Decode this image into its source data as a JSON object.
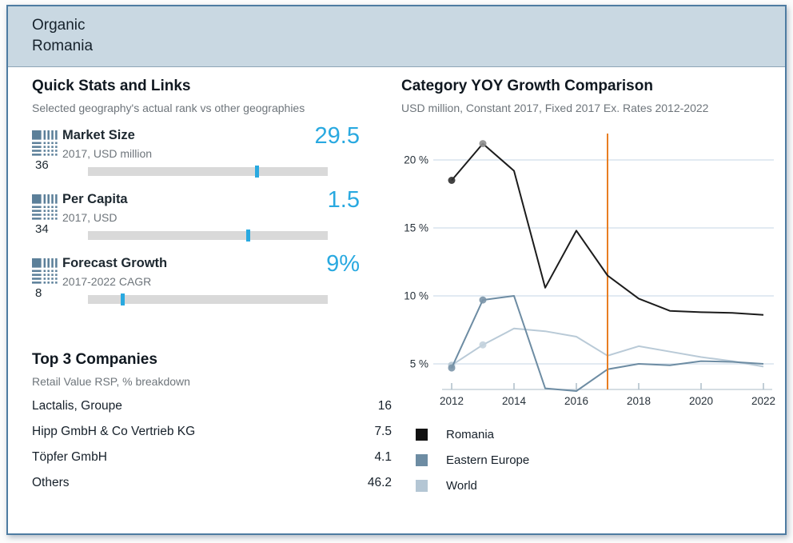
{
  "header": {
    "category": "Organic",
    "geography": "Romania"
  },
  "colors": {
    "accent": "#29a9e0",
    "icon": "#5b7f99",
    "reference_line": "#e87e22"
  },
  "quick_stats": {
    "title": "Quick Stats and Links",
    "subtitle": "Selected geography's actual rank vs other geographies",
    "items": [
      {
        "label": "Market Size",
        "sublabel": "2017, USD million",
        "rank": "36",
        "value": "29.5",
        "marker_pct": 70.3
      },
      {
        "label": "Per Capita",
        "sublabel": "2017, USD",
        "rank": "34",
        "value": "1.5",
        "marker_pct": 66.5
      },
      {
        "label": "Forecast Growth",
        "sublabel": "2017-2022 CAGR",
        "rank": "8",
        "value": "9%",
        "marker_pct": 14.3
      }
    ]
  },
  "top_companies": {
    "title": "Top 3 Companies",
    "subtitle": "Retail Value RSP, % breakdown",
    "rows": [
      {
        "name": "Lactalis, Groupe",
        "value": "16"
      },
      {
        "name": "Hipp GmbH & Co Vertrieb KG",
        "value": "7.5"
      },
      {
        "name": "Töpfer GmbH",
        "value": "4.1"
      },
      {
        "name": "Others",
        "value": "46.2"
      }
    ]
  },
  "chart": {
    "title": "Category YOY Growth Comparison",
    "subtitle": "USD million, Constant 2017, Fixed 2017 Ex. Rates 2012-2022"
  },
  "chart_data": {
    "type": "line",
    "x": [
      2012,
      2013,
      2014,
      2015,
      2016,
      2017,
      2018,
      2019,
      2020,
      2021,
      2022
    ],
    "series": [
      {
        "name": "Romania",
        "color": "#1c1c1c",
        "values": [
          18.5,
          21.2,
          19.2,
          10.6,
          14.8,
          11.5,
          9.8,
          8.9,
          8.8,
          8.75,
          8.6
        ],
        "dots": [
          {
            "x": 2012,
            "color": "#2f2f2f"
          },
          {
            "x": 2013,
            "color": "#8e8e8e"
          }
        ]
      },
      {
        "name": "Eastern Europe",
        "color": "#6d8ca3",
        "values": [
          4.7,
          9.7,
          10.0,
          3.2,
          3.0,
          4.6,
          5.0,
          4.9,
          5.2,
          5.15,
          5.0
        ],
        "dots": [
          {
            "x": 2012,
            "color": "#7b95a9"
          },
          {
            "x": 2013,
            "color": "#7b95a9"
          }
        ]
      },
      {
        "name": "World",
        "color": "#b9cad7",
        "values": [
          4.9,
          6.4,
          7.6,
          7.4,
          7.0,
          5.6,
          6.3,
          5.9,
          5.5,
          5.2,
          4.8
        ],
        "dots": [
          {
            "x": 2012,
            "color": "#b5c6d3"
          },
          {
            "x": 2013,
            "color": "#c3d2dd"
          }
        ]
      }
    ],
    "y_ticks": [
      5,
      10,
      15,
      20
    ],
    "y_tick_suffix": " %",
    "x_ticks": [
      2012,
      2014,
      2016,
      2018,
      2020,
      2022
    ],
    "xlim": [
      2012,
      2022
    ],
    "ylim": [
      3,
      22.5
    ],
    "grid": true,
    "reference_line_x": 2017,
    "reference_line_color": "#e87e22",
    "legend_position": "bottom"
  },
  "legend": {
    "items": [
      {
        "label": "Romania",
        "color": "#111111"
      },
      {
        "label": "Eastern Europe",
        "color": "#6d8ca3"
      },
      {
        "label": "World",
        "color": "#b4c6d4"
      }
    ]
  }
}
